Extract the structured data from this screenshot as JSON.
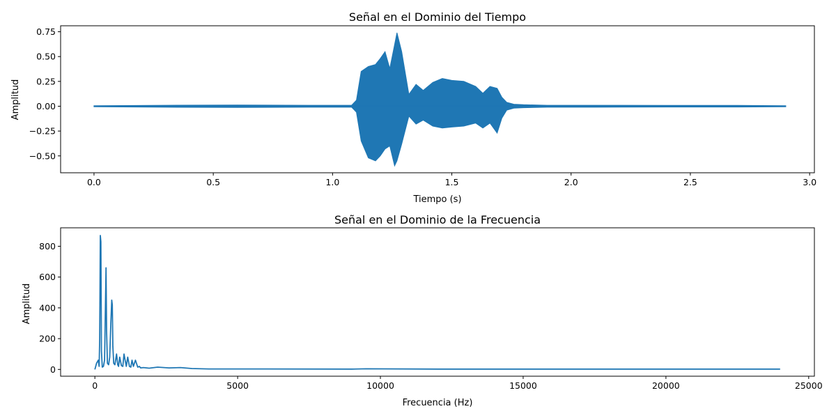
{
  "chart_data": [
    {
      "type": "line",
      "title": "Señal en el Dominio del Tiempo",
      "xlabel": "Tiempo (s)",
      "ylabel": "Amplitud",
      "xlim": [
        -0.14,
        3.02
      ],
      "ylim": [
        -0.67,
        0.81
      ],
      "xticks": [
        0.0,
        0.5,
        1.0,
        1.5,
        2.0,
        2.5,
        3.0
      ],
      "xtick_labels": [
        "0.0",
        "0.5",
        "1.0",
        "1.5",
        "2.0",
        "2.5",
        "3.0"
      ],
      "yticks": [
        -0.5,
        -0.25,
        0.0,
        0.25,
        0.5,
        0.75
      ],
      "ytick_labels": [
        "−0.50",
        "−0.25",
        "0.00",
        "0.25",
        "0.50",
        "0.75"
      ],
      "color": "#1f77b4",
      "grid": false,
      "series": [
        {
          "x": [
            0.0,
            0.3,
            0.6,
            0.9,
            1.08,
            1.1,
            1.12,
            1.15,
            1.18,
            1.2,
            1.22,
            1.24,
            1.26,
            1.27,
            1.29,
            1.32,
            1.35,
            1.38,
            1.42,
            1.46,
            1.5,
            1.55,
            1.6,
            1.63,
            1.66,
            1.69,
            1.71,
            1.73,
            1.76,
            1.8,
            1.9,
            2.1,
            2.4,
            2.7,
            2.9
          ],
          "max": [
            0.005,
            0.01,
            0.012,
            0.01,
            0.01,
            0.06,
            0.35,
            0.4,
            0.42,
            0.48,
            0.55,
            0.38,
            0.62,
            0.74,
            0.55,
            0.12,
            0.22,
            0.16,
            0.24,
            0.28,
            0.26,
            0.25,
            0.2,
            0.13,
            0.2,
            0.18,
            0.09,
            0.04,
            0.02,
            0.015,
            0.01,
            0.01,
            0.008,
            0.008,
            0.005
          ],
          "min": [
            -0.005,
            -0.01,
            -0.012,
            -0.01,
            -0.01,
            -0.06,
            -0.35,
            -0.52,
            -0.55,
            -0.5,
            -0.43,
            -0.4,
            -0.6,
            -0.55,
            -0.38,
            -0.1,
            -0.18,
            -0.14,
            -0.2,
            -0.22,
            -0.21,
            -0.2,
            -0.17,
            -0.22,
            -0.17,
            -0.27,
            -0.12,
            -0.04,
            -0.02,
            -0.015,
            -0.01,
            -0.01,
            -0.008,
            -0.008,
            -0.005
          ]
        }
      ]
    },
    {
      "type": "line",
      "title": "Señal en el Dominio de la Frecuencia",
      "xlabel": "Frecuencia (Hz)",
      "ylabel": "Amplitud",
      "xlim": [
        -1200,
        25200
      ],
      "ylim": [
        -44,
        920
      ],
      "xticks": [
        0,
        5000,
        10000,
        15000,
        20000,
        25000
      ],
      "xtick_labels": [
        "0",
        "5000",
        "10000",
        "15000",
        "20000",
        "25000"
      ],
      "yticks": [
        0,
        200,
        400,
        600,
        800
      ],
      "ytick_labels": [
        "0",
        "200",
        "400",
        "600",
        "800"
      ],
      "color": "#1f77b4",
      "grid": false,
      "series": [
        {
          "x": [
            0,
            60,
            120,
            150,
            170,
            190,
            210,
            230,
            260,
            300,
            340,
            370,
            390,
            410,
            440,
            480,
            520,
            560,
            590,
            610,
            630,
            660,
            700,
            760,
            800,
            830,
            870,
            930,
            980,
            1020,
            1060,
            1100,
            1150,
            1210,
            1260,
            1300,
            1350,
            1420,
            1500,
            1560,
            1600,
            1700,
            1900,
            2200,
            2600,
            3000,
            3400,
            4000,
            6000,
            9000,
            9500,
            12000,
            16000,
            20000,
            24000
          ],
          "y": [
            0,
            40,
            60,
            20,
            200,
            870,
            830,
            120,
            15,
            20,
            60,
            400,
            660,
            250,
            40,
            30,
            80,
            300,
            450,
            420,
            150,
            40,
            30,
            100,
            30,
            20,
            80,
            25,
            20,
            100,
            60,
            20,
            80,
            20,
            15,
            60,
            20,
            60,
            15,
            20,
            10,
            12,
            8,
            15,
            10,
            12,
            6,
            3,
            3,
            2,
            4,
            2,
            2,
            2,
            2
          ]
        }
      ]
    }
  ]
}
